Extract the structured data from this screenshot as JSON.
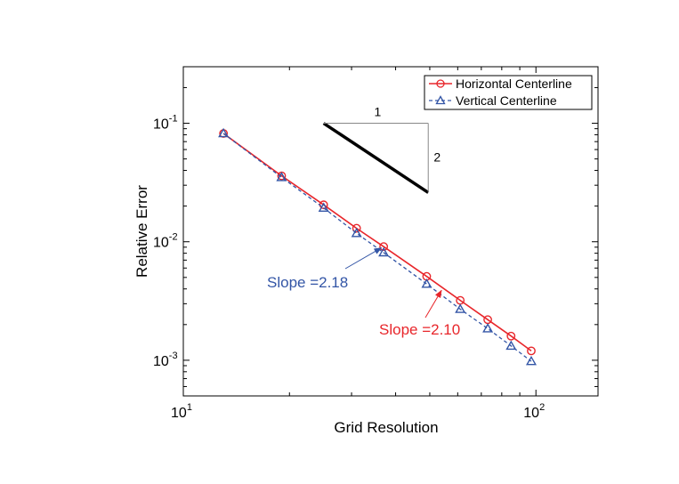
{
  "chart_data": {
    "type": "line",
    "x_scale": "log",
    "y_scale": "log",
    "xlabel": "Grid Resolution",
    "ylabel": "Relative Error",
    "xlim": [
      10,
      150
    ],
    "ylim": [
      0.0005,
      0.3
    ],
    "x_ticks": [
      {
        "value": 10,
        "base": "10",
        "exp": "1"
      },
      {
        "value": 100,
        "base": "10",
        "exp": "2"
      }
    ],
    "y_ticks": [
      {
        "value": 0.001,
        "base": "10",
        "exp": "-3"
      },
      {
        "value": 0.01,
        "base": "10",
        "exp": "-2"
      },
      {
        "value": 0.1,
        "base": "10",
        "exp": "-1"
      }
    ],
    "grid": false,
    "legend_position": "top-right",
    "series": [
      {
        "name": "Horizontal Centerline",
        "color": "#e8262b",
        "line_style": "solid",
        "marker": "circle",
        "x": [
          13,
          19,
          25,
          31,
          37,
          49,
          61,
          73,
          85,
          97
        ],
        "y": [
          0.082,
          0.036,
          0.0205,
          0.013,
          0.0091,
          0.0051,
          0.0032,
          0.0022,
          0.0016,
          0.0012
        ]
      },
      {
        "name": "Vertical Centerline",
        "color": "#3355a6",
        "line_style": "dashed",
        "marker": "triangle",
        "x": [
          13,
          19,
          25,
          31,
          37,
          49,
          61,
          73,
          85,
          97
        ],
        "y": [
          0.082,
          0.035,
          0.0193,
          0.0118,
          0.0081,
          0.0044,
          0.0027,
          0.00185,
          0.00132,
          0.00098
        ]
      }
    ],
    "annotations": [
      {
        "text": "Slope =2.18",
        "color": "#3355a6",
        "arrow_to_x": 36.5,
        "arrow_to_y": 0.0089
      },
      {
        "text": "Slope =2.10",
        "color": "#e8262b",
        "arrow_to_x": 54,
        "arrow_to_y": 0.0039
      }
    ],
    "slope_triangle": {
      "run_label": "1",
      "rise_label": "2",
      "x_start": 25,
      "y_start": 0.1,
      "x_end": 49.5,
      "y_end": 0.026
    }
  }
}
